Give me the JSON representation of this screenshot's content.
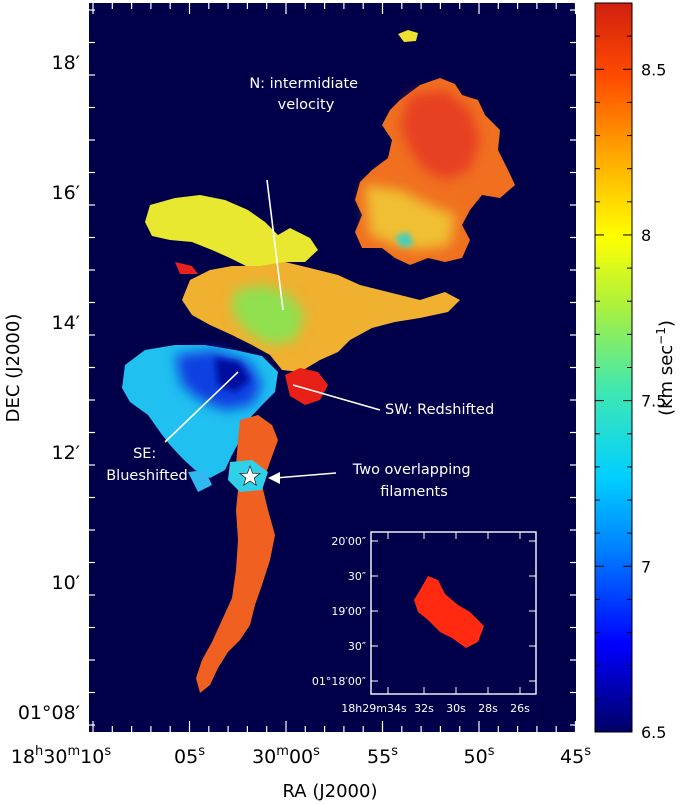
{
  "chart_data": {
    "type": "heatmap",
    "xlabel": "RA (J2000)",
    "ylabel": "DEC (J2000)",
    "colorbar": {
      "label": "(km sec",
      "label_exp": "−1",
      "label_close": ")",
      "range": [
        6.5,
        8.7
      ],
      "ticks": [
        "6.5",
        "7",
        "7.5",
        "8",
        "8.5"
      ],
      "tick_values": [
        6.5,
        7.0,
        7.5,
        8.0,
        8.5
      ],
      "colormap": [
        "#000080",
        "#0000ff",
        "#00bfff",
        "#40e0c0",
        "#b0f040",
        "#ffff00",
        "#ffa000",
        "#ff4000",
        "#d02010"
      ]
    },
    "background_color": "#00004a",
    "y_ticks": [
      {
        "value": 18,
        "text": "18′"
      },
      {
        "value": 16,
        "text": "16′"
      },
      {
        "value": 14,
        "text": "14′"
      },
      {
        "value": 12,
        "text": "12′"
      },
      {
        "value": 10,
        "text": "10′"
      },
      {
        "value": 8,
        "text": "01°08′"
      }
    ],
    "x_ticks": [
      {
        "value": 10,
        "text": "18h30m10s"
      },
      {
        "value": 5,
        "text": "05s"
      },
      {
        "value": 0,
        "text": "29m60s"
      },
      {
        "value": -5,
        "text": "55s"
      },
      {
        "value": -10,
        "text": "50s"
      },
      {
        "value": -15,
        "text": "45s"
      }
    ],
    "x_tick_display": {
      "first": {
        "main": "18",
        "sup1": "h",
        "mid": "30",
        "sup2": "m",
        "end": "10",
        "sup3": "s"
      },
      "third": {
        "main": "30",
        "sup1": "m",
        "mid": "00",
        "sup2": "s"
      }
    },
    "regions": [
      {
        "name": "N",
        "color": "#f0e030",
        "mean_velocity": 8.0
      },
      {
        "name": "SE",
        "color": "#1060ff",
        "mean_velocity": 6.9
      },
      {
        "name": "SW",
        "color": "#e82010",
        "mean_velocity": 8.6
      }
    ],
    "annotations": [
      {
        "id": "north",
        "lines": [
          "N: intermidiate",
          "velocity"
        ]
      },
      {
        "id": "southwest",
        "lines": [
          "SW: Redshifted"
        ]
      },
      {
        "id": "southeast",
        "lines": [
          "SE:",
          "Blueshifted"
        ]
      },
      {
        "id": "filaments",
        "lines": [
          "Two overlapping",
          "filaments"
        ]
      }
    ],
    "inset": {
      "y_ticks": [
        "20′00″",
        "30″",
        "19′00″",
        "30″",
        "01°18′00″"
      ],
      "x_ticks": [
        "18h29m34s",
        "32s",
        "30s",
        "28s",
        "26s"
      ],
      "blob_color": "#ff2a10"
    }
  }
}
